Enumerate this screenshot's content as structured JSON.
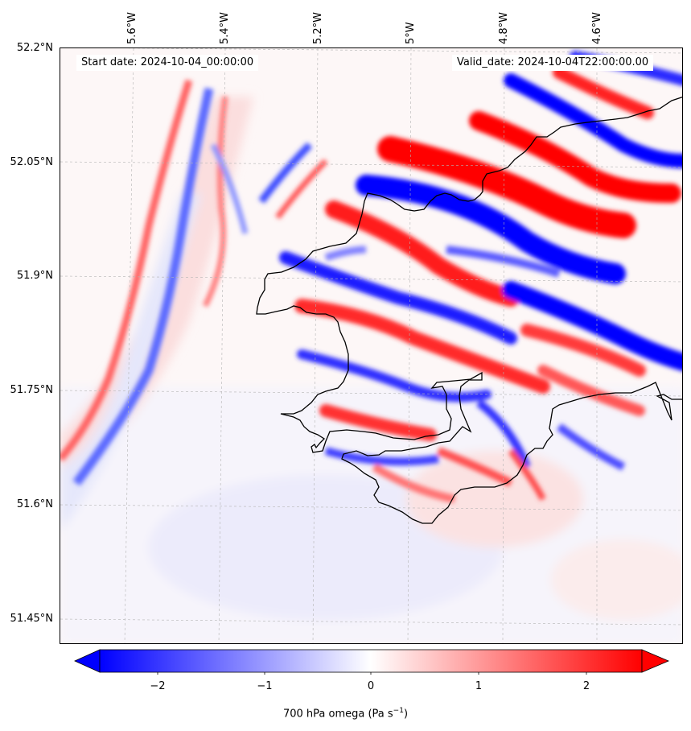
{
  "map": {
    "start_label": "Start date: 2024-10-04_00:00:00",
    "valid_label": "Valid_date: 2024-10-04T22:00:00.00",
    "lat_labels": [
      "52.2°N",
      "52.05°N",
      "51.9°N",
      "51.75°N",
      "51.6°N",
      "51.45°N"
    ],
    "lon_labels": [
      "5.6°W",
      "5.4°W",
      "5.2°W",
      "5°W",
      "4.8°W",
      "4.6°W"
    ],
    "field": "700 hPa omega",
    "colormap": "bwr",
    "color_negative": "#0000ff",
    "color_neutral": "#ffffff",
    "color_positive": "#ff0000",
    "coastline_color": "#000000",
    "gridlines": true
  },
  "colorbar": {
    "ticks": [
      "−2",
      "−1",
      "0",
      "1",
      "2"
    ],
    "label_prefix": "700 hPa omega (Pa s",
    "label_exp": "−1",
    "label_suffix": ")",
    "range": [
      -2.6,
      2.6
    ],
    "extend": "both"
  }
}
